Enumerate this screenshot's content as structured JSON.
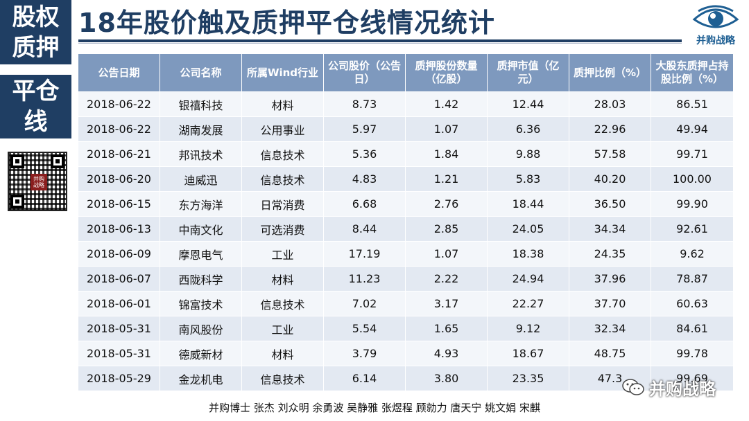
{
  "side_panel": {
    "top_label_line1": "股权",
    "top_label_line2": "质押",
    "mid_label_line1": "平仓",
    "mid_label_line2": "线",
    "qr_logo_text": "并购 战略"
  },
  "title": "18年股价触及质押平仓线情况统计",
  "brand": {
    "name": "并购战略",
    "color": "#1e5f93"
  },
  "table": {
    "headers": [
      "公告日期",
      "公司名称",
      "所属Wind行业",
      "公司股价（公告日）",
      "质押股份数量（亿股）",
      "质押市值（亿元）",
      "质押比例（%）",
      "大股东质押占持股比例（%）"
    ],
    "rows": [
      [
        "2018-06-22",
        "银禧科技",
        "材料",
        "8.73",
        "1.42",
        "12.44",
        "28.03",
        "86.51"
      ],
      [
        "2018-06-22",
        "湖南发展",
        "公用事业",
        "5.97",
        "1.07",
        "6.36",
        "22.96",
        "49.94"
      ],
      [
        "2018-06-21",
        "邦讯技术",
        "信息技术",
        "5.36",
        "1.84",
        "9.88",
        "57.58",
        "99.71"
      ],
      [
        "2018-06-20",
        "迪威迅",
        "信息技术",
        "4.83",
        "1.21",
        "5.83",
        "40.20",
        "100.00"
      ],
      [
        "2018-06-15",
        "东方海洋",
        "日常消费",
        "6.68",
        "2.76",
        "18.44",
        "36.50",
        "99.90"
      ],
      [
        "2018-06-13",
        "中南文化",
        "可选消费",
        "8.44",
        "2.85",
        "24.05",
        "34.34",
        "92.61"
      ],
      [
        "2018-06-09",
        "摩恩电气",
        "工业",
        "17.19",
        "1.07",
        "18.38",
        "24.35",
        "9.62"
      ],
      [
        "2018-06-07",
        "西陇科学",
        "材料",
        "11.23",
        "2.22",
        "24.94",
        "37.96",
        "78.87"
      ],
      [
        "2018-06-01",
        "锦富技术",
        "信息技术",
        "7.02",
        "3.17",
        "22.27",
        "37.70",
        "60.63"
      ],
      [
        "2018-05-31",
        "南风股份",
        "工业",
        "5.54",
        "1.65",
        "9.12",
        "32.34",
        "84.61"
      ],
      [
        "2018-05-31",
        "德威新材",
        "材料",
        "3.79",
        "4.93",
        "18.67",
        "48.75",
        "99.78"
      ],
      [
        "2018-05-29",
        "金龙机电",
        "信息技术",
        "6.14",
        "3.80",
        "23.35",
        "47.3",
        "99.69"
      ]
    ]
  },
  "footer": {
    "authors": "并购博士 张杰 刘众明 余勇波 吴静雅 张煜程  顾勍力 唐天宁 姚文娟 宋麒"
  },
  "watermark": {
    "text": "并购战略"
  },
  "colors": {
    "navy": "#1f3e63",
    "header_blue": "#7e99be",
    "row_light": "#f3f6fa",
    "row_dark": "#e3e9f2"
  }
}
